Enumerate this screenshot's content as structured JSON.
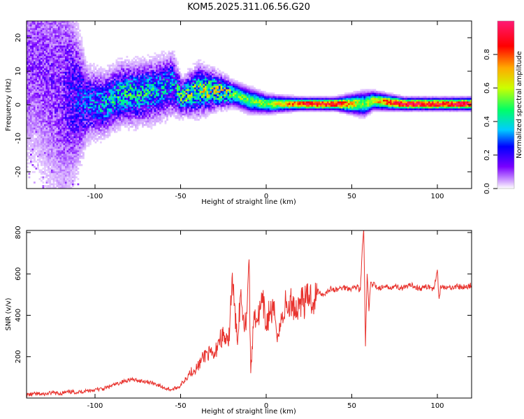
{
  "chart_data": [
    {
      "type": "heatmap",
      "title": "KOM5.2025.311.06.56.G20",
      "xlabel": "Height of straight line (km)",
      "ylabel": "Frequency (Hz)",
      "xlim": [
        -140,
        120
      ],
      "ylim": [
        -25,
        25
      ],
      "xticks": [
        -100,
        -50,
        0,
        50,
        100
      ],
      "yticks": [
        -20,
        -10,
        0,
        10,
        20
      ],
      "colorbar": {
        "label": "Normalized spectral amplitude",
        "range": [
          0,
          1
        ],
        "ticks": [
          "0.0",
          "0.2",
          "0.4",
          "0.6",
          "0.8"
        ],
        "colormap": [
          "#ffffff",
          "#cc99ff",
          "#7a00ff",
          "#0000ff",
          "#00ccff",
          "#00ff66",
          "#ccff00",
          "#ffaa00",
          "#ff0000",
          "#ff1a75"
        ]
      },
      "bands": [
        {
          "x": -135,
          "f": 12,
          "fw": 18,
          "a": 0.18
        },
        {
          "x": -120,
          "f": 4,
          "fw": 22,
          "a": 0.2
        },
        {
          "x": -105,
          "f": 0,
          "fw": 6,
          "a": 0.35
        },
        {
          "x": -95,
          "f": 0,
          "fw": 5,
          "a": 0.42
        },
        {
          "x": -85,
          "f": 3,
          "fw": 5,
          "a": 0.45
        },
        {
          "x": -75,
          "f": 3,
          "fw": 5,
          "a": 0.45
        },
        {
          "x": -65,
          "f": 4,
          "fw": 5,
          "a": 0.43
        },
        {
          "x": -55,
          "f": 6,
          "fw": 5,
          "a": 0.4
        },
        {
          "x": -50,
          "f": 2,
          "fw": 3,
          "a": 0.5
        },
        {
          "x": -40,
          "f": 4,
          "fw": 4,
          "a": 0.55
        },
        {
          "x": -30,
          "f": 4,
          "fw": 3,
          "a": 0.6
        },
        {
          "x": -20,
          "f": 3,
          "fw": 2,
          "a": 0.6
        },
        {
          "x": -10,
          "f": 1,
          "fw": 2,
          "a": 0.6
        },
        {
          "x": 0,
          "f": 0,
          "fw": 1.5,
          "a": 0.65
        },
        {
          "x": 10,
          "f": 0,
          "fw": 1.2,
          "a": 0.75
        },
        {
          "x": 20,
          "f": 0,
          "fw": 1,
          "a": 0.9
        },
        {
          "x": 40,
          "f": 0,
          "fw": 1,
          "a": 0.95
        },
        {
          "x": 57,
          "f": 0,
          "fw": 2,
          "a": 0.6
        },
        {
          "x": 62,
          "f": 1,
          "fw": 1.5,
          "a": 0.7
        },
        {
          "x": 80,
          "f": 0,
          "fw": 1,
          "a": 1.0
        },
        {
          "x": 100,
          "f": 0,
          "fw": 1,
          "a": 0.95
        },
        {
          "x": 120,
          "f": 0,
          "fw": 1,
          "a": 1.0
        }
      ]
    },
    {
      "type": "line",
      "xlabel": "Height of straight line (km)",
      "ylabel": "SNR (v/v)",
      "xlim": [
        -140,
        120
      ],
      "ylim": [
        0,
        810
      ],
      "xticks": [
        -100,
        -50,
        0,
        50,
        100
      ],
      "yticks": [
        200,
        400,
        600,
        800
      ],
      "color": "#e8322d",
      "series": [
        {
          "name": "SNR",
          "x": [
            -140,
            -135,
            -130,
            -125,
            -120,
            -115,
            -110,
            -105,
            -100,
            -95,
            -90,
            -85,
            -80,
            -75,
            -70,
            -65,
            -60,
            -55,
            -50,
            -45,
            -40,
            -35,
            -30,
            -28,
            -25,
            -22,
            -20,
            -17,
            -15,
            -12,
            -10,
            -9,
            -7,
            -5,
            -2,
            0,
            2,
            5,
            7,
            9,
            11,
            13,
            15,
            18,
            20,
            23,
            25,
            28,
            30,
            33,
            35,
            38,
            40,
            45,
            50,
            53,
            55,
            56,
            57,
            58,
            59,
            60,
            61,
            62,
            63,
            65,
            70,
            75,
            80,
            85,
            90,
            95,
            98,
            100,
            101,
            102,
            105,
            110,
            115,
            120
          ],
          "y": [
            15,
            20,
            18,
            25,
            22,
            30,
            28,
            35,
            40,
            45,
            60,
            75,
            90,
            85,
            80,
            70,
            50,
            40,
            60,
            120,
            150,
            220,
            200,
            280,
            300,
            250,
            580,
            280,
            500,
            350,
            670,
            120,
            420,
            380,
            460,
            350,
            420,
            400,
            300,
            380,
            450,
            430,
            470,
            420,
            480,
            460,
            500,
            470,
            520,
            500,
            510,
            530,
            520,
            535,
            530,
            540,
            520,
            700,
            815,
            250,
            600,
            420,
            560,
            535,
            560,
            530,
            535,
            540,
            530,
            545,
            530,
            540,
            525,
            620,
            480,
            545,
            530,
            540,
            535,
            545
          ]
        }
      ]
    }
  ]
}
